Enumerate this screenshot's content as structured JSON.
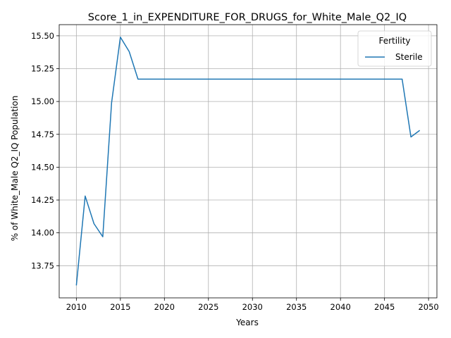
{
  "chart_data": {
    "type": "line",
    "title": "Score_1_in_EXPENDITURE_FOR_DRUGS_for_White_Male_Q2_IQ",
    "xlabel": "Years",
    "ylabel": "% of White_Male Q2_IQ Population",
    "xlim": [
      2008.05,
      2050.95
    ],
    "ylim": [
      13.505,
      15.585
    ],
    "xticks": [
      2010,
      2015,
      2020,
      2025,
      2030,
      2035,
      2040,
      2045,
      2050
    ],
    "yticks": [
      13.75,
      14.0,
      14.25,
      14.5,
      14.75,
      15.0,
      15.25,
      15.5
    ],
    "ytick_labels": [
      "13.75",
      "14.00",
      "14.25",
      "14.50",
      "14.75",
      "15.00",
      "15.25",
      "15.50"
    ],
    "grid": true,
    "legend": {
      "title": "Fertility",
      "position": "top-right"
    },
    "series": [
      {
        "name": "Sterile",
        "color": "#1f77b4",
        "x": [
          2010,
          2011,
          2012,
          2013,
          2014,
          2015,
          2016,
          2017,
          2018,
          2019,
          2020,
          2021,
          2022,
          2023,
          2024,
          2025,
          2026,
          2027,
          2028,
          2029,
          2030,
          2031,
          2032,
          2033,
          2034,
          2035,
          2036,
          2037,
          2038,
          2039,
          2040,
          2041,
          2042,
          2043,
          2044,
          2045,
          2046,
          2047,
          2048,
          2049
        ],
        "y": [
          13.6,
          14.28,
          14.07,
          13.97,
          14.99,
          15.49,
          15.38,
          15.17,
          15.17,
          15.17,
          15.17,
          15.17,
          15.17,
          15.17,
          15.17,
          15.17,
          15.17,
          15.17,
          15.17,
          15.17,
          15.17,
          15.17,
          15.17,
          15.17,
          15.17,
          15.17,
          15.17,
          15.17,
          15.17,
          15.17,
          15.17,
          15.17,
          15.17,
          15.17,
          15.17,
          15.17,
          15.17,
          15.17,
          14.73,
          14.78
        ]
      }
    ]
  }
}
